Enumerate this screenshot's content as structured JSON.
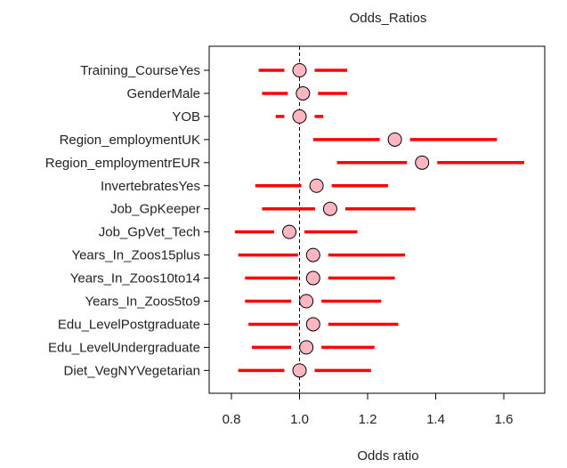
{
  "chart_data": {
    "type": "forest",
    "title": "Odds_Ratios",
    "xlabel": "Odds ratio",
    "ylabel": "",
    "xlim": [
      0.75,
      1.75
    ],
    "xticks": [
      "0.8",
      "1.0",
      "1.2",
      "1.4",
      "1.6"
    ],
    "reference_line": 1.0,
    "grid": false,
    "colors": {
      "interval": "#ff0000",
      "point_fill": "#ffb6c1",
      "point_stroke": "#000000"
    },
    "rows": [
      {
        "label": "Training_CourseYes",
        "or": 1.0,
        "lower": 0.88,
        "upper": 1.14
      },
      {
        "label": "GenderMale",
        "or": 1.01,
        "lower": 0.89,
        "upper": 1.14
      },
      {
        "label": "YOB",
        "or": 1.0,
        "lower": 0.93,
        "upper": 1.07
      },
      {
        "label": "Region_employmentUK",
        "or": 1.28,
        "lower": 1.04,
        "upper": 1.58
      },
      {
        "label": "Region_employmentrEUR",
        "or": 1.36,
        "lower": 1.11,
        "upper": 1.66
      },
      {
        "label": "InvertebratesYes",
        "or": 1.05,
        "lower": 0.87,
        "upper": 1.26
      },
      {
        "label": "Job_GpKeeper",
        "or": 1.09,
        "lower": 0.89,
        "upper": 1.34
      },
      {
        "label": "Job_GpVet_Tech",
        "or": 0.97,
        "lower": 0.81,
        "upper": 1.17
      },
      {
        "label": "Years_In_Zoos15plus",
        "or": 1.04,
        "lower": 0.82,
        "upper": 1.31
      },
      {
        "label": "Years_In_Zoos10to14",
        "or": 1.04,
        "lower": 0.84,
        "upper": 1.28
      },
      {
        "label": "Years_In_Zoos5to9",
        "or": 1.02,
        "lower": 0.84,
        "upper": 1.24
      },
      {
        "label": "Edu_LevelPostgraduate",
        "or": 1.04,
        "lower": 0.85,
        "upper": 1.29
      },
      {
        "label": "Edu_LevelUndergraduate",
        "or": 1.02,
        "lower": 0.86,
        "upper": 1.22
      },
      {
        "label": "Diet_VegNYVegetarian",
        "or": 1.0,
        "lower": 0.82,
        "upper": 1.21
      }
    ]
  }
}
